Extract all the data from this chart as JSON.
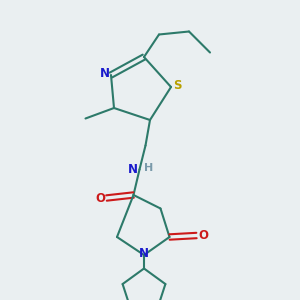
{
  "bg_color": "#eaeff1",
  "bond_color": "#2d7a6a",
  "n_color": "#1a1acc",
  "o_color": "#cc1a1a",
  "s_color": "#b8a000",
  "h_color": "#7a9aaa",
  "line_width": 1.5,
  "font_size": 8.5,
  "xlim": [
    0,
    10
  ],
  "ylim": [
    0,
    10
  ]
}
